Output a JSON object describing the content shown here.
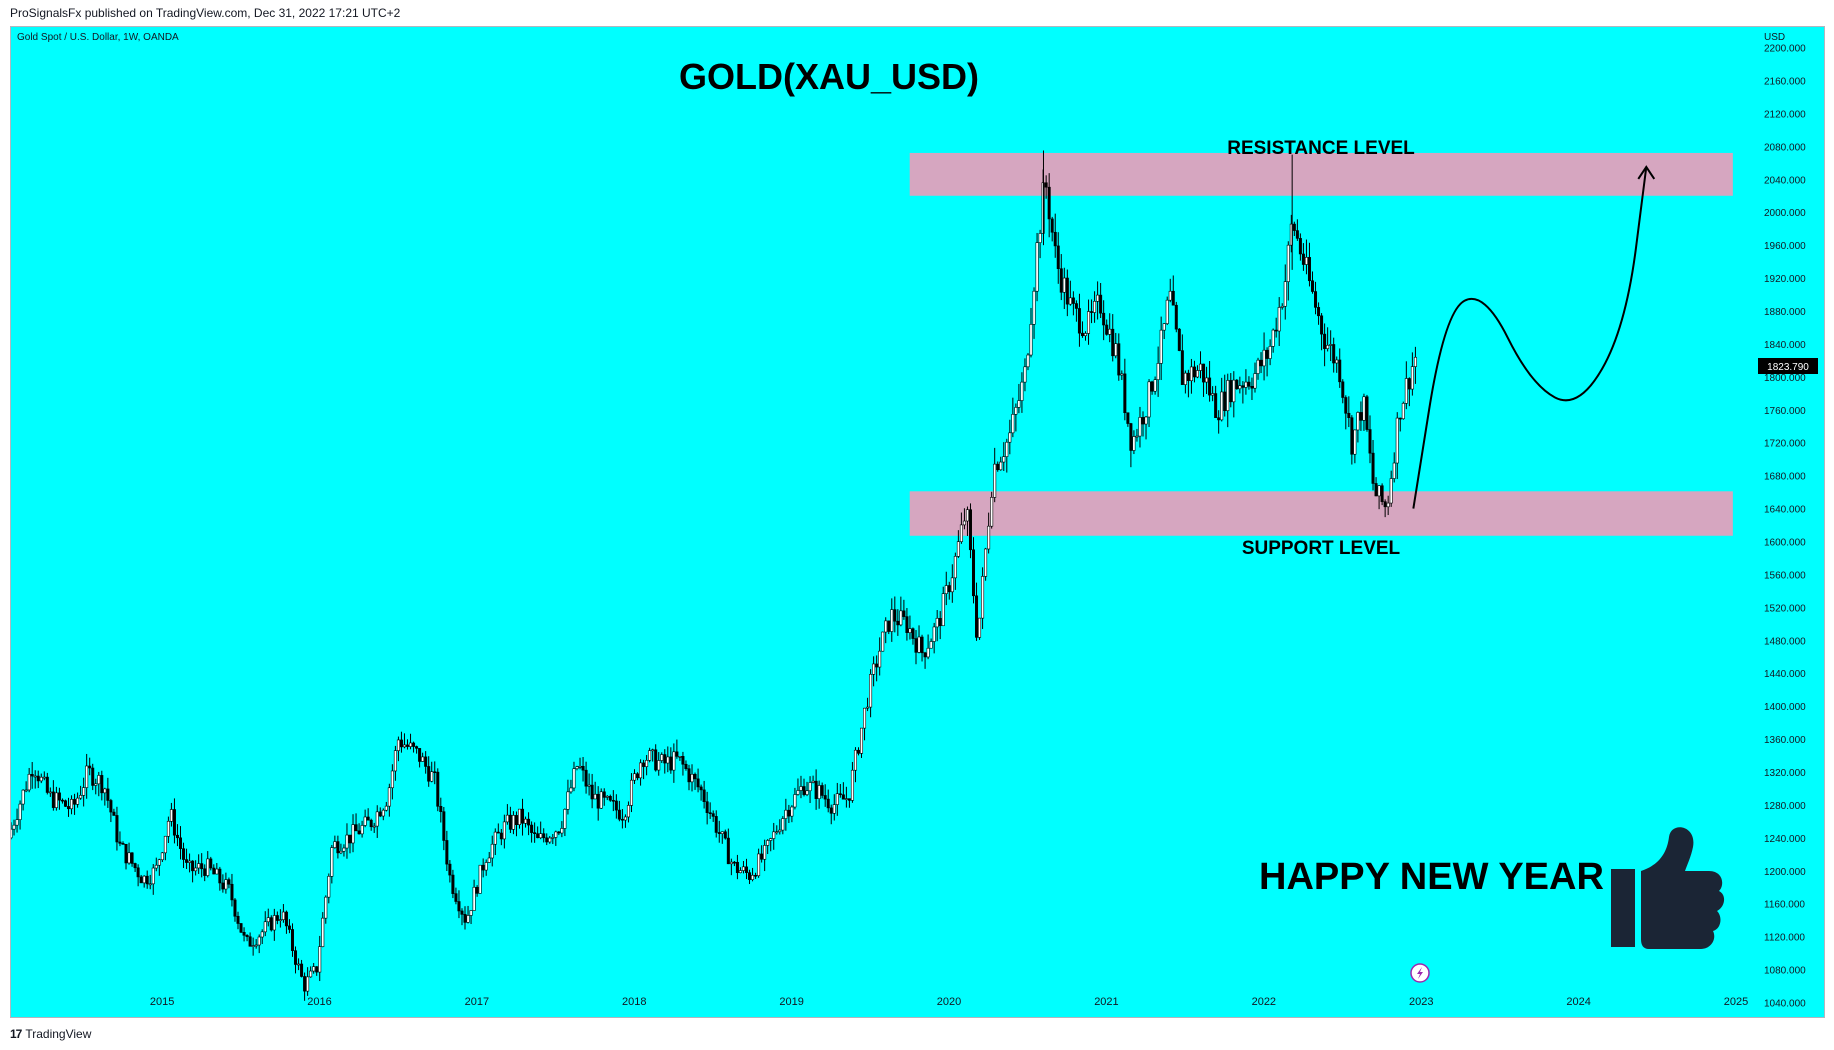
{
  "header": {
    "publish_note": "ProSignalsFx published on TradingView.com, Dec 31, 2022 17:21 UTC+2"
  },
  "footer": {
    "brand": "TradingView",
    "logo_icon": "tradingview-logo-icon"
  },
  "chart_data": {
    "type": "candlestick",
    "symbol_label": "Gold Spot / U.S. Dollar, 1W, OANDA",
    "title": "GOLD(XAU_USD)",
    "currency": "USD",
    "last_price": "1823.790",
    "y_ticks": [
      "2200.000",
      "2160.000",
      "2120.000",
      "2080.000",
      "2040.000",
      "2000.000",
      "1960.000",
      "1920.000",
      "1880.000",
      "1840.000",
      "1800.000",
      "1760.000",
      "1720.000",
      "1680.000",
      "1640.000",
      "1600.000",
      "1560.000",
      "1520.000",
      "1480.000",
      "1440.000",
      "1400.000",
      "1360.000",
      "1320.000",
      "1280.000",
      "1240.000",
      "1200.000",
      "1160.000",
      "1120.000",
      "1080.000",
      "1040.000"
    ],
    "x_ticks": [
      "2015",
      "2016",
      "2017",
      "2018",
      "2019",
      "2020",
      "2021",
      "2022",
      "2023",
      "2024",
      "2025"
    ],
    "ylim": [
      1020,
      2225
    ],
    "xlim": [
      2014.04,
      2025.0
    ],
    "zones": [
      {
        "label": "RESISTANCE LEVEL",
        "from": 2020,
        "to": 2072,
        "x_start": 2019.75,
        "x_end": 2024.98,
        "color": "#d6a6c0"
      },
      {
        "label": "SUPPORT LEVEL",
        "from": 1607,
        "to": 1661,
        "x_start": 2019.75,
        "x_end": 2024.98,
        "color": "#d6a6c0"
      }
    ],
    "projection": [
      [
        2022.95,
        1640
      ],
      [
        2023.15,
        1880
      ],
      [
        2023.4,
        1905
      ],
      [
        2023.7,
        1790
      ],
      [
        2024.0,
        1760
      ],
      [
        2024.3,
        1860
      ],
      [
        2024.43,
        2055
      ]
    ],
    "annotation": "HAPPY NEW YEAR",
    "annotation_icon": "thumbs-up-icon",
    "watermark_icon": "lightning-icon",
    "series_path": [
      [
        2014.04,
        1240
      ],
      [
        2014.2,
        1330
      ],
      [
        2014.3,
        1290
      ],
      [
        2014.45,
        1275
      ],
      [
        2014.55,
        1320
      ],
      [
        2014.65,
        1305
      ],
      [
        2014.75,
        1230
      ],
      [
        2014.9,
        1190
      ],
      [
        2014.98,
        1200
      ],
      [
        2015.07,
        1270
      ],
      [
        2015.18,
        1200
      ],
      [
        2015.3,
        1205
      ],
      [
        2015.45,
        1175
      ],
      [
        2015.55,
        1110
      ],
      [
        2015.65,
        1125
      ],
      [
        2015.78,
        1150
      ],
      [
        2015.92,
        1060
      ],
      [
        2016.0,
        1080
      ],
      [
        2016.1,
        1230
      ],
      [
        2016.2,
        1240
      ],
      [
        2016.35,
        1260
      ],
      [
        2016.45,
        1290
      ],
      [
        2016.52,
        1360
      ],
      [
        2016.65,
        1340
      ],
      [
        2016.75,
        1310
      ],
      [
        2016.85,
        1190
      ],
      [
        2016.95,
        1140
      ],
      [
        2017.08,
        1220
      ],
      [
        2017.2,
        1255
      ],
      [
        2017.3,
        1265
      ],
      [
        2017.4,
        1235
      ],
      [
        2017.55,
        1255
      ],
      [
        2017.66,
        1330
      ],
      [
        2017.75,
        1290
      ],
      [
        2017.85,
        1280
      ],
      [
        2017.95,
        1270
      ],
      [
        2018.07,
        1340
      ],
      [
        2018.2,
        1330
      ],
      [
        2018.3,
        1335
      ],
      [
        2018.45,
        1295
      ],
      [
        2018.55,
        1250
      ],
      [
        2018.65,
        1205
      ],
      [
        2018.75,
        1195
      ],
      [
        2018.85,
        1220
      ],
      [
        2018.97,
        1270
      ],
      [
        2019.1,
        1305
      ],
      [
        2019.2,
        1295
      ],
      [
        2019.28,
        1280
      ],
      [
        2019.38,
        1290
      ],
      [
        2019.5,
        1410
      ],
      [
        2019.58,
        1470
      ],
      [
        2019.65,
        1510
      ],
      [
        2019.75,
        1500
      ],
      [
        2019.85,
        1465
      ],
      [
        2019.95,
        1500
      ],
      [
        2020.05,
        1570
      ],
      [
        2020.13,
        1640
      ],
      [
        2020.2,
        1480
      ],
      [
        2020.3,
        1690
      ],
      [
        2020.4,
        1725
      ],
      [
        2020.5,
        1800
      ],
      [
        2020.58,
        1960
      ],
      [
        2020.63,
        2040
      ],
      [
        2020.7,
        1940
      ],
      [
        2020.8,
        1880
      ],
      [
        2020.9,
        1860
      ],
      [
        2020.98,
        1890
      ],
      [
        2021.08,
        1830
      ],
      [
        2021.18,
        1720
      ],
      [
        2021.28,
        1770
      ],
      [
        2021.38,
        1850
      ],
      [
        2021.42,
        1900
      ],
      [
        2021.5,
        1800
      ],
      [
        2021.62,
        1810
      ],
      [
        2021.72,
        1760
      ],
      [
        2021.82,
        1790
      ],
      [
        2021.95,
        1800
      ],
      [
        2022.05,
        1830
      ],
      [
        2022.15,
        1910
      ],
      [
        2022.2,
        1990
      ],
      [
        2022.3,
        1920
      ],
      [
        2022.4,
        1850
      ],
      [
        2022.5,
        1810
      ],
      [
        2022.58,
        1720
      ],
      [
        2022.65,
        1770
      ],
      [
        2022.72,
        1660
      ],
      [
        2022.8,
        1640
      ],
      [
        2022.88,
        1760
      ],
      [
        2022.98,
        1824
      ]
    ]
  }
}
